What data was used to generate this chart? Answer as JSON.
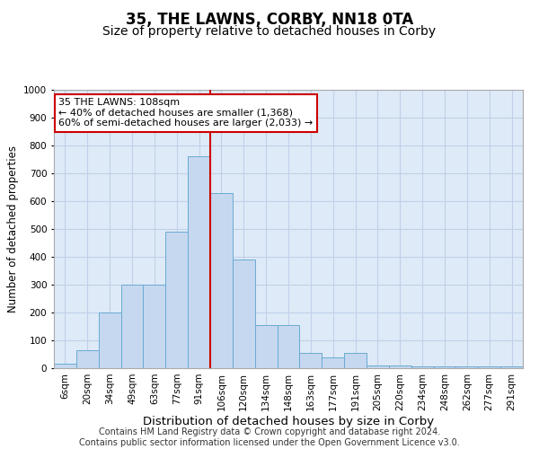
{
  "title": "35, THE LAWNS, CORBY, NN18 0TA",
  "subtitle": "Size of property relative to detached houses in Corby",
  "xlabel": "Distribution of detached houses by size in Corby",
  "ylabel": "Number of detached properties",
  "categories": [
    "6sqm",
    "20sqm",
    "34sqm",
    "49sqm",
    "63sqm",
    "77sqm",
    "91sqm",
    "106sqm",
    "120sqm",
    "134sqm",
    "148sqm",
    "163sqm",
    "177sqm",
    "191sqm",
    "205sqm",
    "220sqm",
    "234sqm",
    "248sqm",
    "262sqm",
    "277sqm",
    "291sqm"
  ],
  "values": [
    15,
    65,
    200,
    300,
    300,
    490,
    760,
    630,
    390,
    155,
    155,
    55,
    40,
    55,
    10,
    10,
    5,
    5,
    5,
    5,
    5
  ],
  "bar_color": "#c5d8ef",
  "bar_edge_color": "#6aaad4",
  "vline_color": "#cc0000",
  "vline_pos": 6.5,
  "annotation_text": "35 THE LAWNS: 108sqm\n← 40% of detached houses are smaller (1,368)\n60% of semi-detached houses are larger (2,033) →",
  "annotation_box_color": "white",
  "annotation_box_edge_color": "#cc0000",
  "ylim": [
    0,
    1000
  ],
  "yticks": [
    0,
    100,
    200,
    300,
    400,
    500,
    600,
    700,
    800,
    900,
    1000
  ],
  "grid_color": "#c0d0e8",
  "background_color": "#deeaf7",
  "footer_text": "Contains HM Land Registry data © Crown copyright and database right 2024.\nContains public sector information licensed under the Open Government Licence v3.0.",
  "title_fontsize": 12,
  "subtitle_fontsize": 10,
  "xlabel_fontsize": 9.5,
  "ylabel_fontsize": 8.5,
  "tick_fontsize": 7.5,
  "annotation_fontsize": 8,
  "footer_fontsize": 7
}
